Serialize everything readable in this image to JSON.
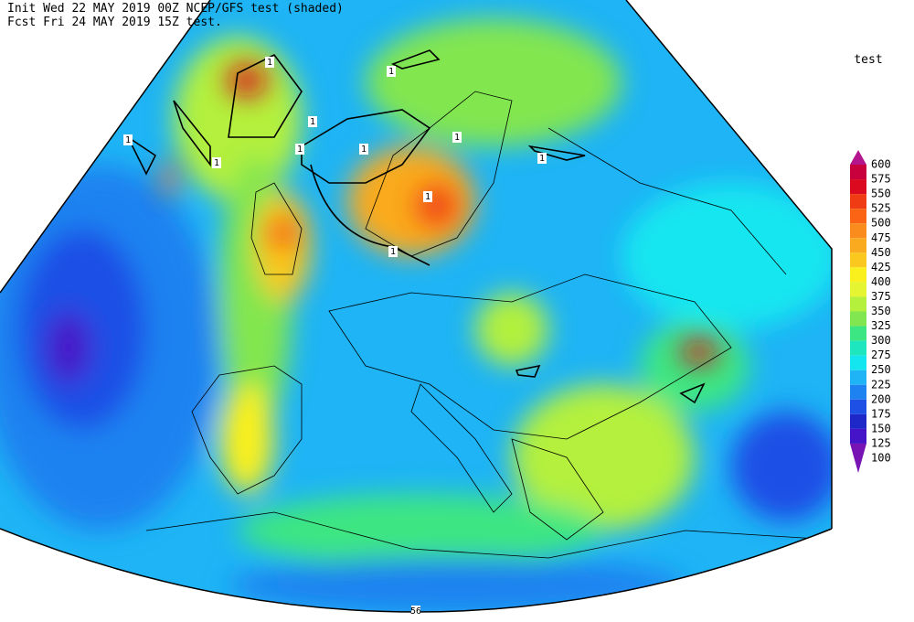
{
  "header": {
    "line1": "Init  Wed 22 MAY 2019 00Z  NCEP/GFS test (shaded)",
    "line2": "Fcst Fri 24 MAY 2019 15Z   test."
  },
  "legend": {
    "title": "test",
    "levels": [
      {
        "value": 600,
        "color": "#b4148c"
      },
      {
        "value": 575,
        "color": "#c8003c"
      },
      {
        "value": 550,
        "color": "#dc0a1e"
      },
      {
        "value": 525,
        "color": "#f03c14"
      },
      {
        "value": 500,
        "color": "#fa6414"
      },
      {
        "value": 475,
        "color": "#fa8c1e"
      },
      {
        "value": 450,
        "color": "#faaa1e"
      },
      {
        "value": 425,
        "color": "#fac81e"
      },
      {
        "value": 400,
        "color": "#faf01e"
      },
      {
        "value": 375,
        "color": "#e6f532"
      },
      {
        "value": 350,
        "color": "#b4f03c"
      },
      {
        "value": 325,
        "color": "#82e650"
      },
      {
        "value": 300,
        "color": "#3ce682"
      },
      {
        "value": 275,
        "color": "#1ee6be"
      },
      {
        "value": 250,
        "color": "#14e6f0"
      },
      {
        "value": 225,
        "color": "#1eb4f5"
      },
      {
        "value": 200,
        "color": "#1e82f0"
      },
      {
        "value": 175,
        "color": "#1e50e6"
      },
      {
        "value": 150,
        "color": "#1e28c8"
      },
      {
        "value": 125,
        "color": "#4614c8"
      },
      {
        "value": 100,
        "color": "#7814b4"
      }
    ]
  },
  "map": {
    "contour_labels": [
      "1",
      "1",
      "1",
      "1",
      "1",
      "1",
      "1",
      "1",
      "1",
      "1",
      "1",
      "56"
    ]
  }
}
